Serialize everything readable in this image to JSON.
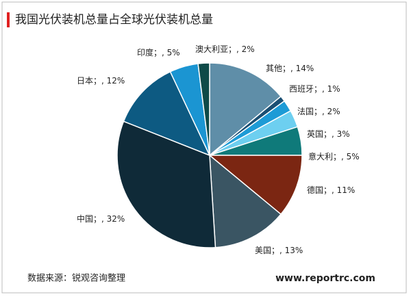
{
  "chart_data": {
    "type": "pie",
    "title": "我国光伏装机总量占全球光伏装机总量",
    "categories": [
      "其他；",
      "西班牙；",
      "法国；",
      "英国；",
      "意大利；",
      "德国；",
      "美国；",
      "中国；",
      "日本；",
      "印度；",
      "澳大利亚；"
    ],
    "values": [
      14,
      1,
      2,
      3,
      5,
      11,
      13,
      32,
      12,
      5,
      2
    ],
    "value_labels": [
      ", 14%",
      ", 1%",
      ", 2%",
      ", 3%",
      ", 5%",
      ", 11%",
      ", 13%",
      ", 32%",
      ", 12%",
      ", 5%",
      ", 2%"
    ],
    "colors": [
      "#5f8ea8",
      "#1a4f73",
      "#1d9bd6",
      "#6dcff0",
      "#0f7a7a",
      "#7b2612",
      "#3a5563",
      "#0f2a38",
      "#0d5a82",
      "#1b95d2",
      "#0e4a48"
    ],
    "source": "数据来源：锐观咨询整理",
    "website": "www.reportrc.com"
  }
}
